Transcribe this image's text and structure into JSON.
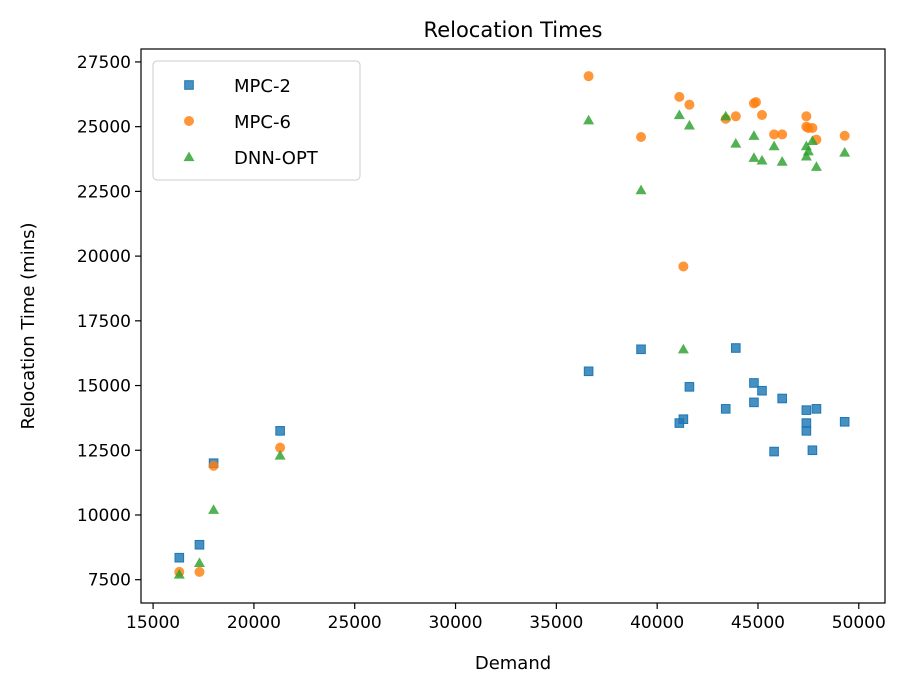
{
  "chart_data": {
    "type": "scatter",
    "title": "Relocation Times",
    "xlabel": "Demand",
    "ylabel": "Relocation Time (mins)",
    "xlim": [
      14400,
      51300
    ],
    "ylim": [
      6600,
      28000
    ],
    "xticks": [
      15000,
      20000,
      25000,
      30000,
      35000,
      40000,
      45000,
      50000
    ],
    "yticks": [
      7500,
      10000,
      12500,
      15000,
      17500,
      20000,
      22500,
      25000,
      27500
    ],
    "legend_position": "top-left",
    "series": [
      {
        "name": "MPC-2",
        "marker": "square",
        "color": "#1f77b4",
        "points": [
          [
            16300,
            8350
          ],
          [
            17300,
            8850
          ],
          [
            18000,
            12000
          ],
          [
            21300,
            13250
          ],
          [
            36600,
            15550
          ],
          [
            39200,
            16400
          ],
          [
            41100,
            13550
          ],
          [
            41300,
            13700
          ],
          [
            41600,
            14950
          ],
          [
            43400,
            14100
          ],
          [
            43900,
            16450
          ],
          [
            44800,
            15100
          ],
          [
            44800,
            14350
          ],
          [
            45200,
            14800
          ],
          [
            45800,
            12450
          ],
          [
            46200,
            14500
          ],
          [
            47400,
            14050
          ],
          [
            47400,
            13550
          ],
          [
            47400,
            13250
          ],
          [
            47700,
            12500
          ],
          [
            47900,
            14100
          ],
          [
            49300,
            13600
          ]
        ]
      },
      {
        "name": "MPC-6",
        "marker": "circle",
        "color": "#ff7f0e",
        "points": [
          [
            16300,
            7800
          ],
          [
            17300,
            7800
          ],
          [
            18000,
            11900
          ],
          [
            21300,
            12600
          ],
          [
            36600,
            26950
          ],
          [
            39200,
            24600
          ],
          [
            41100,
            26150
          ],
          [
            41300,
            19600
          ],
          [
            41600,
            25850
          ],
          [
            43400,
            25300
          ],
          [
            43900,
            25400
          ],
          [
            44800,
            25900
          ],
          [
            44900,
            25950
          ],
          [
            45200,
            25450
          ],
          [
            45800,
            24700
          ],
          [
            46200,
            24700
          ],
          [
            47400,
            25400
          ],
          [
            47400,
            25000
          ],
          [
            47500,
            24950
          ],
          [
            47700,
            24950
          ],
          [
            47900,
            24500
          ],
          [
            49300,
            24650
          ]
        ]
      },
      {
        "name": "DNN-OPT",
        "marker": "triangle",
        "color": "#2ca02c",
        "points": [
          [
            16300,
            7700
          ],
          [
            17300,
            8150
          ],
          [
            18000,
            10200
          ],
          [
            21300,
            12300
          ],
          [
            36600,
            25250
          ],
          [
            39200,
            22550
          ],
          [
            41100,
            25450
          ],
          [
            41300,
            16400
          ],
          [
            41600,
            25050
          ],
          [
            43400,
            25400
          ],
          [
            43900,
            24350
          ],
          [
            44800,
            24650
          ],
          [
            44800,
            23800
          ],
          [
            45200,
            23700
          ],
          [
            45800,
            24250
          ],
          [
            46200,
            23650
          ],
          [
            47400,
            24250
          ],
          [
            47400,
            23850
          ],
          [
            47500,
            24050
          ],
          [
            47700,
            24450
          ],
          [
            47900,
            23450
          ],
          [
            49300,
            24000
          ]
        ]
      }
    ]
  }
}
